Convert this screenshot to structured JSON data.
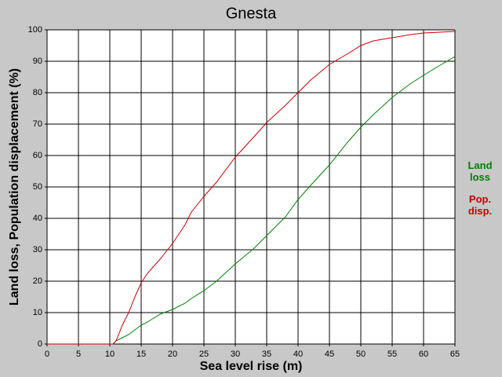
{
  "chart_data": {
    "type": "line",
    "title": "Gnesta",
    "x_label": "Sea level rise (m)",
    "y_label": "Land loss, Population displacement (%)",
    "x": [
      0,
      5,
      10,
      10.5,
      11,
      12,
      13,
      14,
      15,
      16,
      18,
      20,
      22,
      23,
      25,
      27,
      30,
      33,
      35,
      38,
      40,
      42,
      45,
      48,
      50,
      52,
      55,
      58,
      60,
      62,
      65
    ],
    "series": [
      {
        "name": "Land loss",
        "color": "#008000",
        "values": [
          0,
          0,
          0,
          0,
          1,
          2,
          3,
          4.5,
          6,
          7,
          9.5,
          11,
          13,
          14.5,
          17,
          20,
          25.5,
          30.5,
          34.5,
          40.5,
          46,
          50.5,
          57,
          64.5,
          69,
          73,
          78.5,
          83,
          85.5,
          88,
          91.5
        ]
      },
      {
        "name": "Pop. disp.",
        "color": "#cc0000",
        "values": [
          0,
          0,
          0,
          0,
          1,
          6,
          10,
          15,
          19.5,
          22.5,
          27,
          32,
          38,
          42,
          47,
          51.5,
          59.5,
          66,
          70.5,
          76,
          80,
          84,
          89,
          92.5,
          95,
          96.5,
          97.5,
          98.5,
          99,
          99.2,
          99.5
        ]
      }
    ],
    "xlim": [
      0,
      65
    ],
    "xticks": [
      0,
      5,
      10,
      15,
      20,
      25,
      30,
      35,
      40,
      45,
      50,
      55,
      60,
      65
    ],
    "ylim": [
      0,
      100
    ],
    "yticks": [
      0,
      10,
      20,
      30,
      40,
      50,
      60,
      70,
      80,
      90,
      100
    ],
    "grid": true
  }
}
